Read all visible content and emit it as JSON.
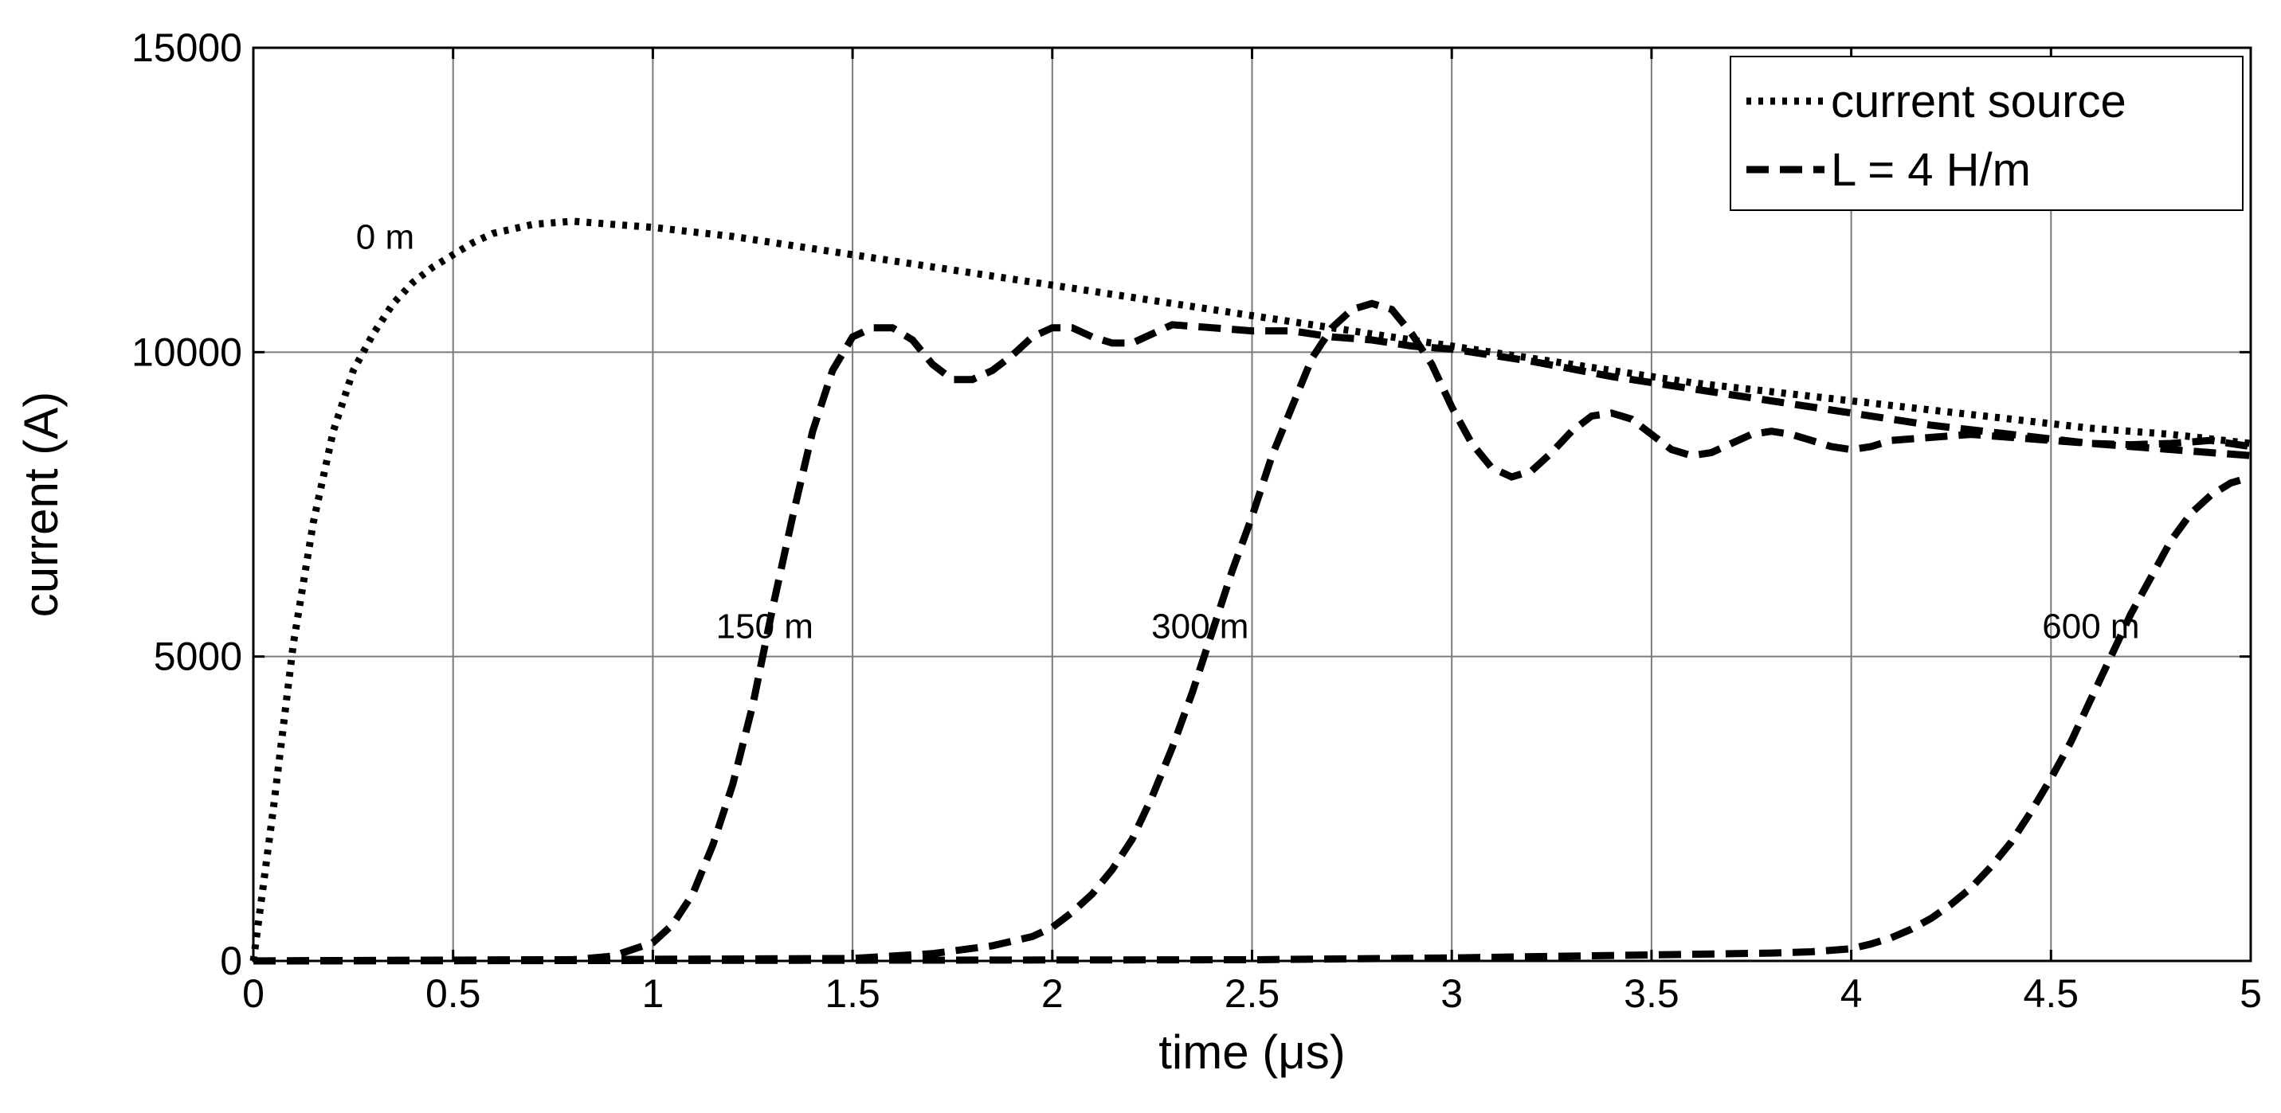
{
  "chart_data": {
    "type": "line",
    "title": "",
    "xlabel": "time (μs)",
    "ylabel": "current (A)",
    "xlim": [
      0,
      5
    ],
    "ylim": [
      0,
      15000
    ],
    "grid": true,
    "legend_position": "top-right",
    "x_ticks": [
      "0",
      "0.5",
      "1",
      "1.5",
      "2",
      "2.5",
      "3",
      "3.5",
      "4",
      "4.5",
      "5"
    ],
    "y_ticks": [
      "0",
      "5000",
      "10000",
      "15000"
    ],
    "legend": [
      {
        "label": "current source",
        "style": "dotted"
      },
      {
        "label": "L = 4 H/m",
        "style": "dashed"
      }
    ],
    "annotations": [
      {
        "text": "0 m",
        "x": 0.33,
        "y": 11700
      },
      {
        "text": "150 m",
        "x": 1.28,
        "y": 5300
      },
      {
        "text": "300 m",
        "x": 2.37,
        "y": 5300
      },
      {
        "text": "600 m",
        "x": 4.6,
        "y": 5300
      }
    ],
    "series": [
      {
        "name": "current source",
        "style": "dotted",
        "color": "#000000",
        "x": [
          0,
          0.05,
          0.1,
          0.15,
          0.2,
          0.25,
          0.3,
          0.35,
          0.4,
          0.45,
          0.5,
          0.55,
          0.6,
          0.7,
          0.8,
          0.9,
          1.0,
          1.2,
          1.4,
          1.6,
          1.8,
          2.0,
          2.2,
          2.4,
          2.6,
          2.8,
          3.0,
          3.2,
          3.4,
          3.6,
          3.8,
          4.0,
          4.2,
          4.4,
          4.6,
          4.8,
          5.0
        ],
        "y": [
          0,
          2500,
          5200,
          7200,
          8700,
          9700,
          10300,
          10800,
          11150,
          11400,
          11600,
          11800,
          11950,
          12100,
          12150,
          12100,
          12050,
          11900,
          11700,
          11500,
          11300,
          11100,
          10900,
          10700,
          10500,
          10300,
          10100,
          9900,
          9700,
          9500,
          9350,
          9200,
          9050,
          8900,
          8750,
          8650,
          8500
        ]
      },
      {
        "name": "150 m",
        "style": "dashed",
        "color": "#000000",
        "x": [
          0,
          0.8,
          0.9,
          1.0,
          1.05,
          1.1,
          1.15,
          1.2,
          1.25,
          1.3,
          1.35,
          1.4,
          1.45,
          1.5,
          1.55,
          1.6,
          1.65,
          1.7,
          1.75,
          1.8,
          1.85,
          1.9,
          1.95,
          2.0,
          2.05,
          2.1,
          2.15,
          2.2,
          2.25,
          2.3,
          2.4,
          2.5,
          2.6,
          2.7,
          2.8,
          2.9,
          3.0,
          3.2,
          3.4,
          3.6,
          3.8,
          4.0,
          4.2,
          4.4,
          4.6,
          4.8,
          5.0
        ],
        "y": [
          0,
          20,
          80,
          300,
          600,
          1100,
          1900,
          2900,
          4200,
          5800,
          7300,
          8700,
          9700,
          10250,
          10400,
          10400,
          10200,
          9800,
          9550,
          9550,
          9700,
          9950,
          10250,
          10400,
          10400,
          10250,
          10150,
          10150,
          10300,
          10450,
          10400,
          10350,
          10350,
          10250,
          10200,
          10100,
          10050,
          9850,
          9600,
          9400,
          9200,
          9000,
          8800,
          8650,
          8500,
          8400,
          8300
        ]
      },
      {
        "name": "300 m",
        "style": "dashed",
        "color": "#000000",
        "x": [
          0,
          1.5,
          1.7,
          1.85,
          1.95,
          2.0,
          2.05,
          2.1,
          2.15,
          2.2,
          2.25,
          2.3,
          2.35,
          2.4,
          2.45,
          2.5,
          2.55,
          2.6,
          2.65,
          2.7,
          2.75,
          2.8,
          2.85,
          2.9,
          2.95,
          3.0,
          3.05,
          3.1,
          3.15,
          3.2,
          3.25,
          3.3,
          3.35,
          3.4,
          3.45,
          3.5,
          3.55,
          3.6,
          3.65,
          3.7,
          3.75,
          3.8,
          3.85,
          3.9,
          3.95,
          4.0,
          4.05,
          4.1,
          4.2,
          4.3,
          4.4,
          4.5,
          4.6,
          4.7,
          4.8,
          4.9,
          5.0
        ],
        "y": [
          0,
          40,
          120,
          250,
          400,
          550,
          800,
          1100,
          1500,
          2000,
          2700,
          3500,
          4400,
          5400,
          6400,
          7300,
          8300,
          9100,
          9900,
          10400,
          10700,
          10800,
          10700,
          10300,
          9800,
          9100,
          8500,
          8100,
          7950,
          8050,
          8350,
          8700,
          8950,
          9000,
          8900,
          8650,
          8400,
          8300,
          8350,
          8500,
          8650,
          8700,
          8650,
          8550,
          8450,
          8400,
          8450,
          8550,
          8600,
          8650,
          8600,
          8550,
          8500,
          8480,
          8500,
          8550,
          8450
        ]
      },
      {
        "name": "600 m",
        "style": "dashed",
        "color": "#000000",
        "x": [
          0,
          2.5,
          3.0,
          3.5,
          3.8,
          3.9,
          4.0,
          4.05,
          4.1,
          4.15,
          4.2,
          4.25,
          4.3,
          4.35,
          4.4,
          4.45,
          4.5,
          4.55,
          4.6,
          4.65,
          4.7,
          4.75,
          4.8,
          4.85,
          4.9,
          4.95,
          5.0
        ],
        "y": [
          0,
          20,
          50,
          100,
          130,
          150,
          200,
          280,
          380,
          520,
          700,
          930,
          1200,
          1550,
          1950,
          2450,
          3000,
          3600,
          4300,
          5000,
          5700,
          6300,
          6900,
          7350,
          7650,
          7850,
          7950
        ]
      }
    ]
  }
}
